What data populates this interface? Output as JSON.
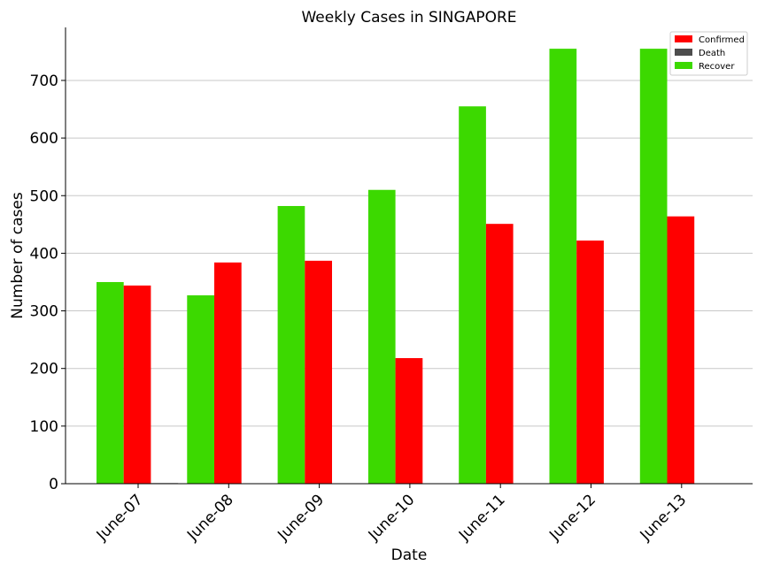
{
  "chart_data": {
    "type": "bar",
    "title": "Weekly Cases in SINGAPORE",
    "xlabel": "Date",
    "ylabel": "Number of cases",
    "categories": [
      "June-07",
      "June-08",
      "June-09",
      "June-10",
      "June-11",
      "June-12",
      "June-13"
    ],
    "series": [
      {
        "name": "Recover",
        "color": "#3cd900",
        "values": [
          350,
          327,
          482,
          510,
          655,
          755,
          755
        ]
      },
      {
        "name": "Confirmed",
        "color": "#ff0000",
        "values": [
          344,
          384,
          387,
          218,
          451,
          422,
          464
        ]
      },
      {
        "name": "Death",
        "color": "#4d4d4d",
        "values": [
          1,
          0,
          0,
          0,
          0,
          0,
          0
        ]
      }
    ],
    "legend_order": [
      "Confirmed",
      "Death",
      "Recover"
    ],
    "legend_position": "top-right",
    "ylim": [
      0,
      790
    ],
    "yticks": [
      0,
      100,
      200,
      300,
      400,
      500,
      600,
      700
    ],
    "grid": "horizontal"
  }
}
